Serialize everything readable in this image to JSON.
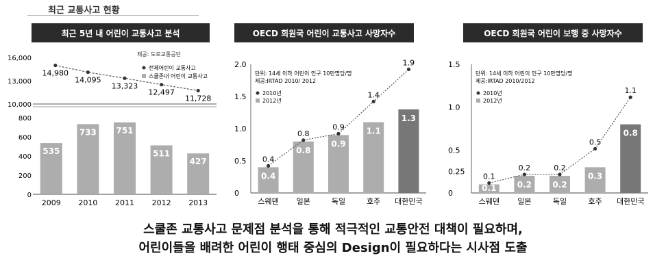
{
  "page_title": "최근 교통사고 현황",
  "conclusion_line1": "스쿨존 교통사고 문제점 분석을 통해 적극적인 교통안전 대책이 필요하며,",
  "conclusion_line2": "어린이들을 배려한 어린이 행태 중심의 Design이 필요하다는 시사점 도출",
  "chart_data": [
    {
      "type": "bar",
      "title": "최근 5년 내 어린이 교통사고 분석",
      "source": "제공: 도로교통공단",
      "categories": [
        "2009",
        "2010",
        "2011",
        "2012",
        "2013"
      ],
      "series": [
        {
          "name": "전체어린이 교통사고",
          "type": "line",
          "values": [
            14980,
            14095,
            13323,
            12497,
            11728
          ],
          "labels": [
            "14,980",
            "14,095",
            "13,323",
            "12,497",
            "11,728"
          ]
        },
        {
          "name": "스쿨존내 어린이 교통사고",
          "type": "bar",
          "values": [
            535,
            733,
            751,
            511,
            427
          ]
        }
      ],
      "upper_axis": {
        "ticks": [
          "16,000",
          "13,000",
          "10,000"
        ],
        "ylim": [
          10000,
          16000
        ]
      },
      "lower_axis": {
        "ticks": [
          "800",
          "600",
          "400",
          "200",
          "0"
        ],
        "ylim": [
          0,
          800
        ]
      },
      "colors": {
        "bar": "#adadad",
        "line": "#555555"
      }
    },
    {
      "type": "bar",
      "title": "OECD 회원국 어린이 교통사고 사망자수",
      "unit_note": "단위: 14세 이하 어린이 인구 10만명당/명",
      "source": "제공:IRTAD 2010/ 2012",
      "categories": [
        "스웨덴",
        "일본",
        "독일",
        "호주",
        "대한민국"
      ],
      "series": [
        {
          "name": "2010년",
          "type": "line",
          "values": [
            0.4,
            0.8,
            0.9,
            1.4,
            1.9
          ],
          "labels": [
            "0.4",
            "0.8",
            "0.9",
            "1.4",
            "1.9"
          ]
        },
        {
          "name": "2012년",
          "type": "bar",
          "values": [
            0.4,
            0.8,
            0.9,
            1.1,
            1.3
          ],
          "labels": [
            "0.4",
            "0.8",
            "0.9",
            "1.1",
            "1.3"
          ]
        }
      ],
      "yticks": [
        "2.0",
        "1.5",
        "1.0",
        "0.5",
        "0"
      ],
      "ylim": [
        0,
        2.0
      ],
      "colors": {
        "bar": "#adadad",
        "highlight": "#777777",
        "line": "#555555"
      }
    },
    {
      "type": "bar",
      "title": "OECD 회원국 어린이 보행 중 사망자수",
      "unit_note": "단위: 14세 이하 어린이 인구 10만명당/명",
      "source": "제공:IRTAD 2010/2012",
      "categories": [
        "스웨덴",
        "일본",
        "독일",
        "호주",
        "대한민국"
      ],
      "series": [
        {
          "name": "2010년",
          "type": "line",
          "values": [
            0.1,
            0.2,
            0.2,
            0.5,
            1.1
          ],
          "labels": [
            "0.1",
            "0.2",
            "0.2",
            "0.5",
            "1.1"
          ]
        },
        {
          "name": "2012년",
          "type": "bar",
          "values": [
            0.1,
            0.2,
            0.2,
            0.3,
            0.8
          ],
          "labels": [
            "0.1",
            "0.2",
            "0.2",
            "0.3",
            "0.8"
          ]
        }
      ],
      "yticks": [
        "1.5",
        "1.0",
        "0.5",
        "0.25",
        "0"
      ],
      "ylim": [
        0,
        1.5
      ],
      "colors": {
        "bar": "#adadad",
        "highlight": "#777777",
        "line": "#555555"
      }
    }
  ]
}
